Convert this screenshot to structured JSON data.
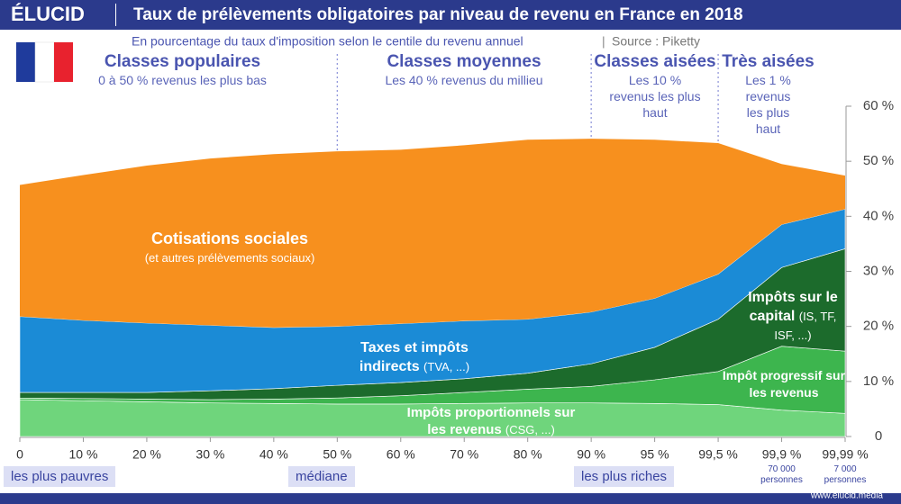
{
  "brand": "ÉLUCID",
  "website": "www.elucid.media",
  "chart_data": {
    "type": "stacked_area",
    "title": "Taux de prélèvements obligatoires par niveau de revenu en France en 2018",
    "subtitle": "En pourcentage du taux d'imposition selon le centile du revenu annuel",
    "source": "Source : Piketty",
    "categories": [
      "0",
      "10 %",
      "20 %",
      "30 %",
      "40 %",
      "50 %",
      "60 %",
      "70 %",
      "80 %",
      "90 %",
      "95 %",
      "99,5 %",
      "99,9 %",
      "99,99 %"
    ],
    "series": [
      {
        "name": "Impôts proportionnels sur les revenus",
        "sublabel": "(CSG, ...)",
        "color": "#6fd57c",
        "values": [
          6.7,
          6.5,
          6.3,
          6.1,
          6.0,
          5.9,
          5.9,
          6.0,
          6.1,
          6.1,
          6.0,
          5.8,
          4.8,
          4.2
        ]
      },
      {
        "name": "Impôt progressif sur les revenus",
        "color": "#3db54e",
        "values": [
          0.3,
          0.4,
          0.5,
          0.6,
          0.8,
          1.1,
          1.5,
          2.0,
          2.5,
          3.0,
          4.3,
          6.0,
          11.6,
          11.3
        ]
      },
      {
        "name": "Impôts sur le capital",
        "sublabel": "(IS, TF, ISF, ...)",
        "color": "#1c6b2c",
        "values": [
          1.0,
          1.1,
          1.2,
          1.6,
          1.9,
          2.3,
          2.4,
          2.5,
          2.9,
          4.1,
          5.9,
          9.5,
          14.3,
          18.6
        ]
      },
      {
        "name": "Taxes et impôts indirects",
        "sublabel": "(TVA, ...)",
        "color": "#1b8bd6",
        "values": [
          13.8,
          13.1,
          12.6,
          11.9,
          11.1,
          10.7,
          10.7,
          10.5,
          9.8,
          9.4,
          8.9,
          8.2,
          7.8,
          7.2
        ]
      },
      {
        "name": "Cotisations sociales",
        "sublabel": "(et autres prélèvements sociaux)",
        "color": "#f7901e",
        "values": [
          23.9,
          26.4,
          28.6,
          30.3,
          31.5,
          31.8,
          31.6,
          31.9,
          32.6,
          31.5,
          28.8,
          23.8,
          11.0,
          6.1
        ]
      }
    ],
    "ylim": [
      0,
      60
    ],
    "yticks": [
      0,
      {
        "value": 10,
        "label": "10 %"
      },
      {
        "value": 20,
        "label": "20 %"
      },
      {
        "value": 30,
        "label": "30 %"
      },
      {
        "value": 40,
        "label": "40 %"
      },
      {
        "value": 50,
        "label": "50 %"
      },
      {
        "value": 60,
        "label": "60 %"
      }
    ],
    "groups": [
      {
        "title": "Classes populaires",
        "subtitle": "0 à 50 % revenus les plus bas"
      },
      {
        "title": "Classes moyennes",
        "subtitle": "Les 40 % revenus du millieu"
      },
      {
        "title": "Classes aisées",
        "subtitle": "Les 10 % revenus les plus haut"
      },
      {
        "title": "Très aisées",
        "subtitle": "Les 1 % revenus les plus haut"
      }
    ],
    "x_notes": [
      "les plus pauvres",
      "médiane",
      "les plus riches"
    ],
    "population_notes": [
      "70 000 personnes",
      "7 000 personnes"
    ]
  }
}
